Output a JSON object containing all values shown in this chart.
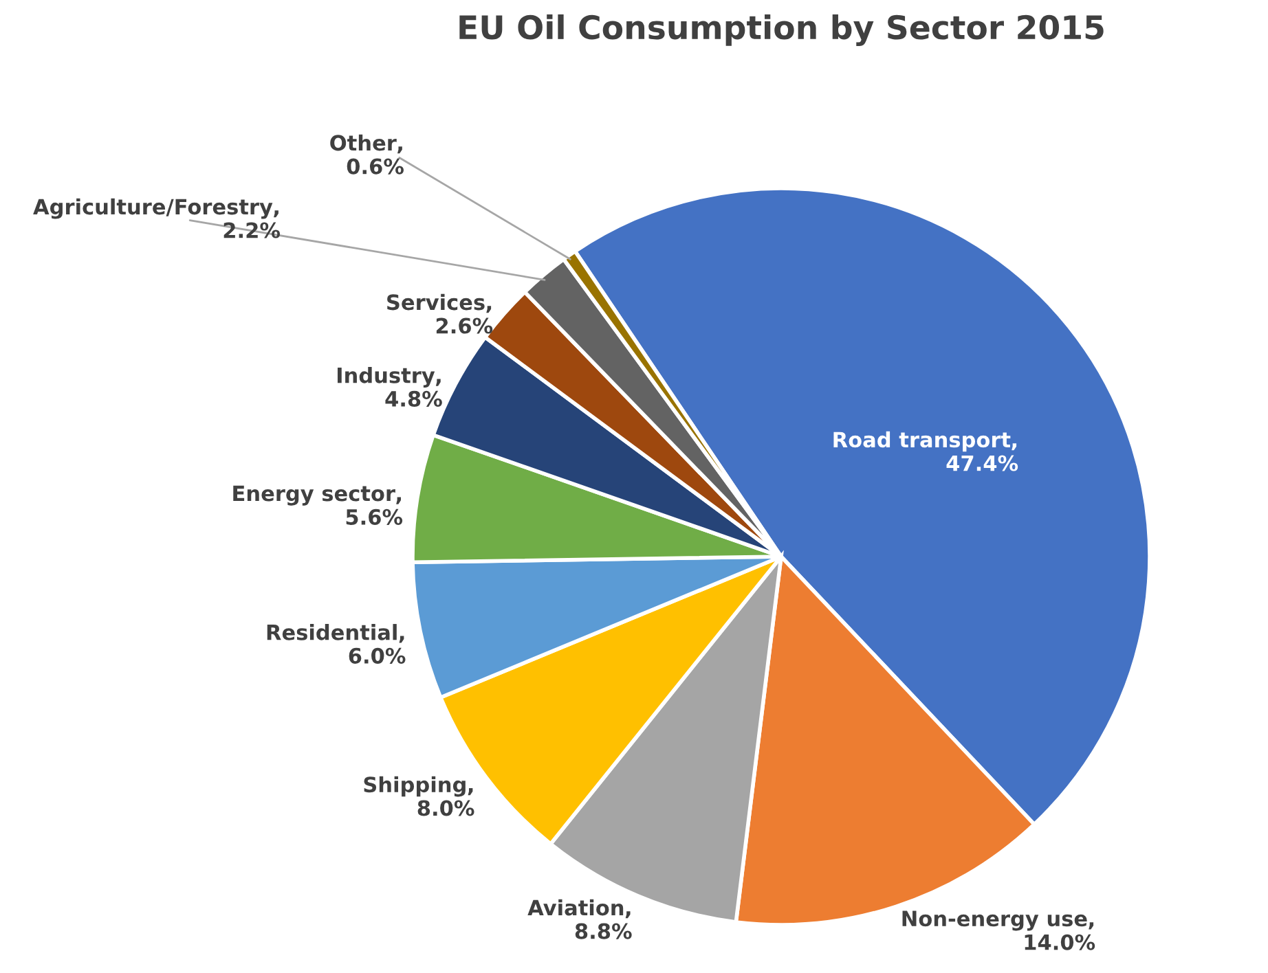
{
  "chart_data": {
    "type": "pie",
    "title": "EU Oil Consumption by Sector 2015",
    "categories": [
      "Road transport",
      "Non-energy use",
      "Aviation",
      "Shipping",
      "Residential",
      "Energy sector",
      "Industry",
      "Services",
      "Agriculture/Forestry",
      "Other"
    ],
    "values": [
      47.4,
      14.0,
      8.8,
      8.0,
      6.0,
      5.6,
      4.8,
      2.6,
      2.2,
      0.6
    ],
    "value_labels": [
      ",\n47.4%",
      ",\n14.0%",
      ",\n8.8%",
      ",\n8.0%",
      ",\n6.0%",
      ",\n5.6%",
      ",\n4.8%",
      ",\n2.6%",
      ",\n2.2%",
      ",\n0.6%"
    ],
    "colors": [
      "#4472c4",
      "#ed7d31",
      "#a5a5a5",
      "#ffc000",
      "#5b9bd5",
      "#70ad47",
      "#264478",
      "#9e480e",
      "#636363",
      "#997300"
    ]
  }
}
